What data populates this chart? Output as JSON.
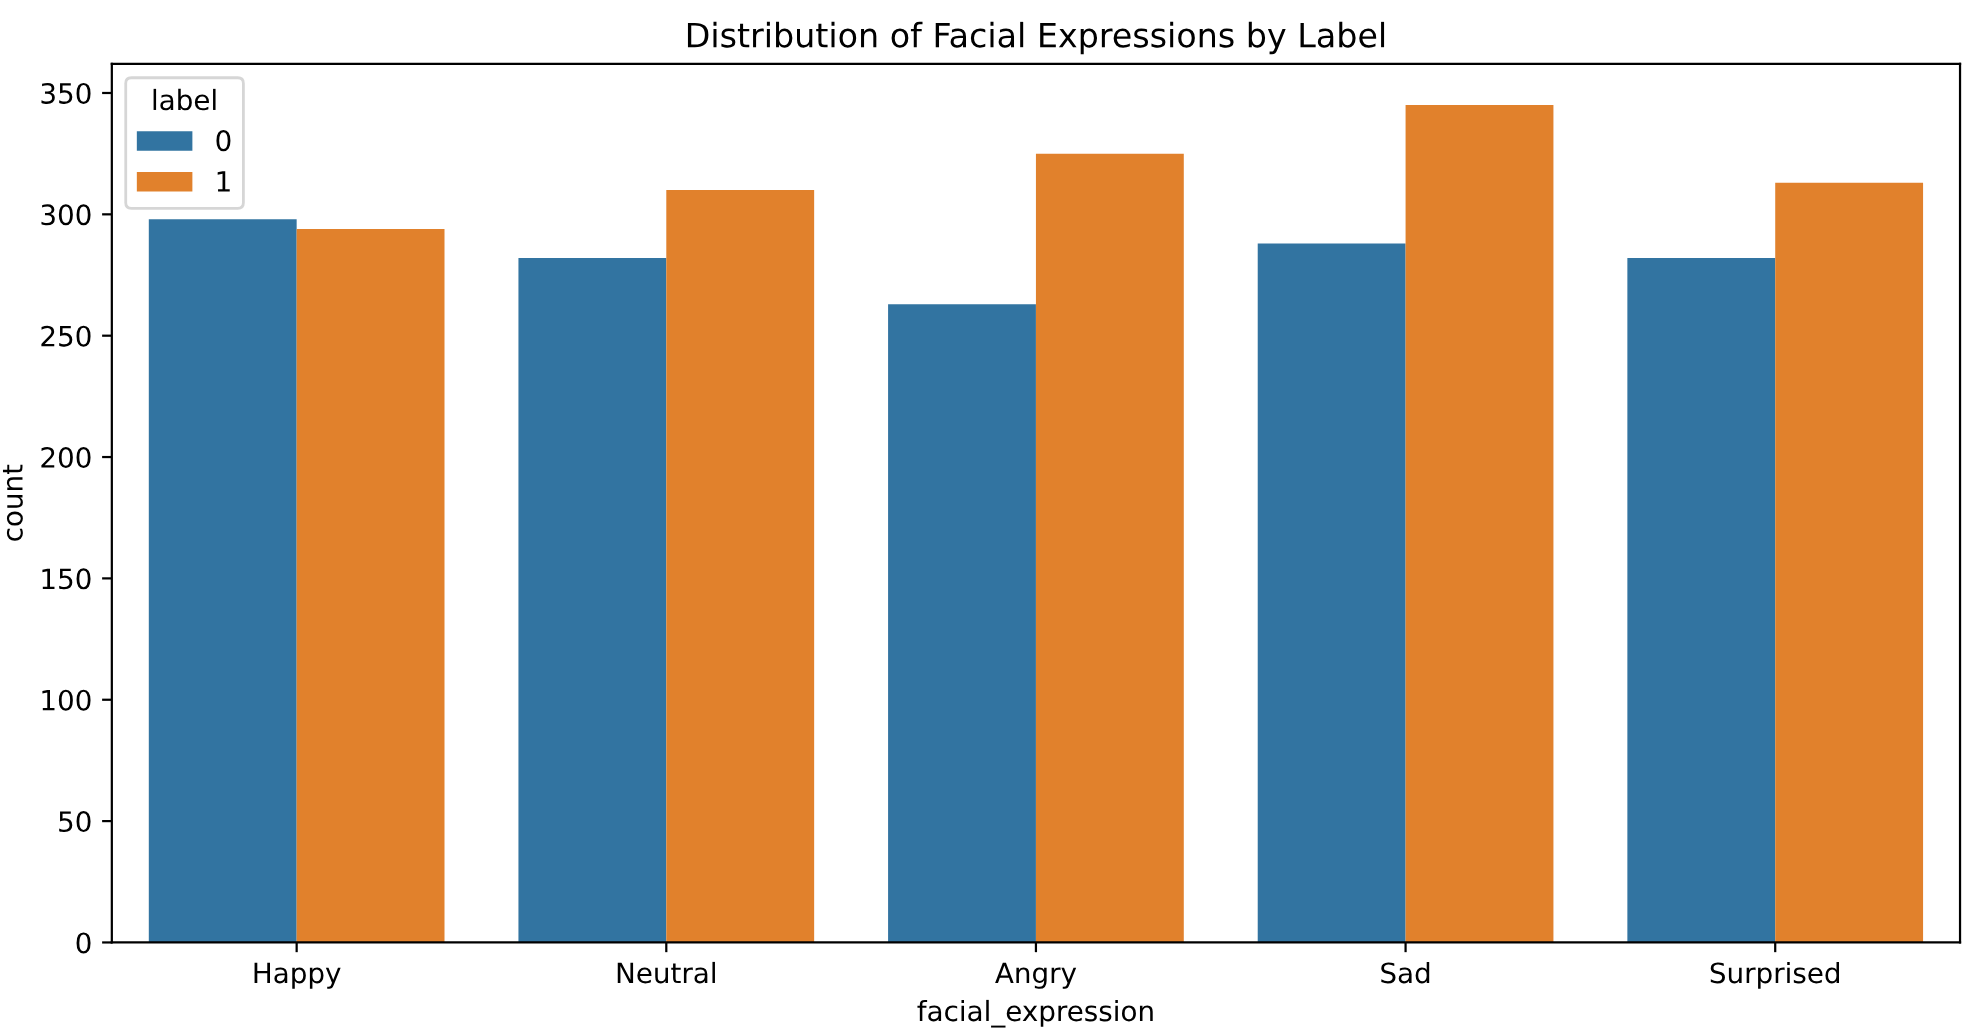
{
  "chart_data": {
    "type": "bar",
    "title": "Distribution of Facial Expressions by Label",
    "xlabel": "facial_expression",
    "ylabel": "count",
    "legend_title": "label",
    "categories": [
      "Happy",
      "Neutral",
      "Angry",
      "Sad",
      "Surprised"
    ],
    "series": [
      {
        "name": "0",
        "color": "#3274a1",
        "values": [
          298,
          282,
          263,
          288,
          282
        ]
      },
      {
        "name": "1",
        "color": "#e1812c",
        "values": [
          294,
          310,
          325,
          345,
          313
        ]
      }
    ],
    "ylim": [
      0,
      362
    ],
    "yticks": [
      0,
      50,
      100,
      150,
      200,
      250,
      300,
      350
    ],
    "grid": false,
    "legend": "top left"
  }
}
